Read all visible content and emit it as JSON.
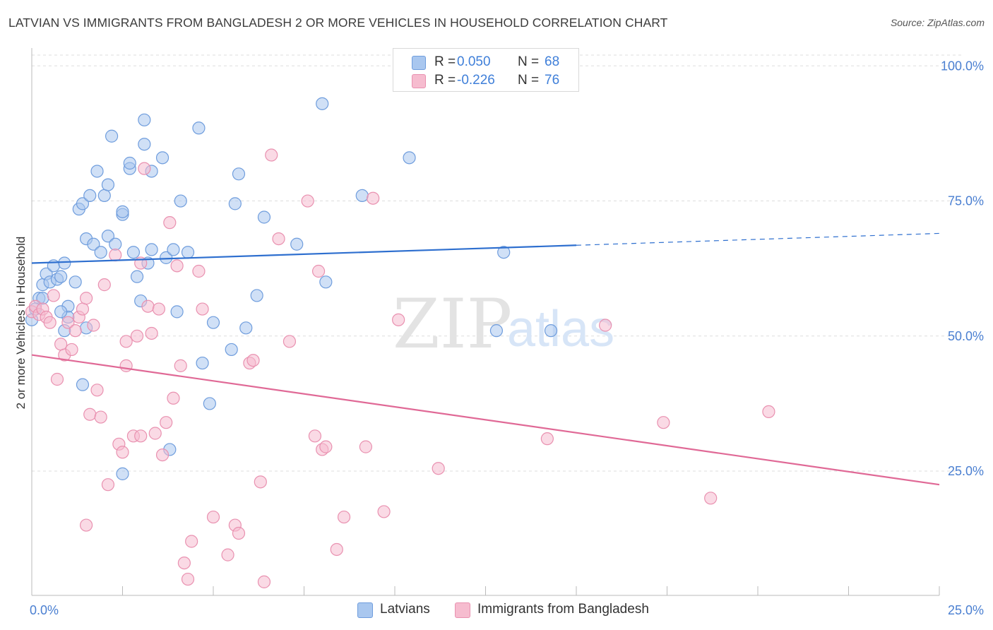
{
  "title": "LATVIAN VS IMMIGRANTS FROM BANGLADESH 2 OR MORE VEHICLES IN HOUSEHOLD CORRELATION CHART",
  "source": "Source: ZipAtlas.com",
  "watermark": {
    "zip": "ZIP",
    "atlas": "atlas"
  },
  "colors": {
    "blue_fill": "#a9c7ef",
    "blue_stroke": "#6f9ddd",
    "blue_line": "#2e6fcf",
    "pink_fill": "#f6bccf",
    "pink_stroke": "#e991b0",
    "pink_line": "#e06996",
    "axis_text": "#4a7fd1",
    "grid": "#dddddd"
  },
  "legend_top": {
    "rows": [
      {
        "series": "Latvians",
        "r_label": "R =",
        "r_value": "0.050",
        "n_label": "N =",
        "n_value": "68"
      },
      {
        "series": "Immigrants from Bangladesh",
        "r_label": "R =",
        "r_value": "-0.226",
        "n_label": "N =",
        "n_value": "76"
      }
    ]
  },
  "legend_bottom": [
    "Latvians",
    "Immigrants from Bangladesh"
  ],
  "chart_data": {
    "type": "scatter",
    "title": "LATVIAN VS IMMIGRANTS FROM BANGLADESH 2 OR MORE VEHICLES IN HOUSEHOLD CORRELATION CHART",
    "xlabel": "",
    "ylabel": "2 or more Vehicles in Household",
    "xlim": [
      0,
      25
    ],
    "ylim": [
      2,
      102
    ],
    "x_tick_labels": [
      "0.0%",
      "25.0%"
    ],
    "y_ticks": [
      25,
      50,
      75,
      100
    ],
    "y_tick_labels": [
      "25.0%",
      "50.0%",
      "75.0%",
      "100.0%"
    ],
    "grid": true,
    "series": [
      {
        "name": "Latvians",
        "color": "#6f9ddd",
        "trend": {
          "x_start": 0,
          "y_start": 63.5,
          "x_end": 15,
          "y_end": 66.8,
          "x_dash_end": 25,
          "y_dash_end": 69.0
        },
        "points": [
          {
            "x": 0.0,
            "y": 53.0
          },
          {
            "x": 0.2,
            "y": 57.0
          },
          {
            "x": 0.1,
            "y": 55.0
          },
          {
            "x": 0.3,
            "y": 59.5
          },
          {
            "x": 0.4,
            "y": 61.5
          },
          {
            "x": 0.5,
            "y": 60.0
          },
          {
            "x": 0.7,
            "y": 60.5
          },
          {
            "x": 0.8,
            "y": 61.0
          },
          {
            "x": 0.6,
            "y": 63.0
          },
          {
            "x": 0.9,
            "y": 63.5
          },
          {
            "x": 1.0,
            "y": 55.5
          },
          {
            "x": 1.0,
            "y": 53.5
          },
          {
            "x": 1.2,
            "y": 60.0
          },
          {
            "x": 1.3,
            "y": 73.5
          },
          {
            "x": 1.4,
            "y": 74.5
          },
          {
            "x": 1.5,
            "y": 68.0
          },
          {
            "x": 1.6,
            "y": 76.0
          },
          {
            "x": 1.7,
            "y": 67.0
          },
          {
            "x": 1.8,
            "y": 80.5
          },
          {
            "x": 1.9,
            "y": 65.5
          },
          {
            "x": 2.0,
            "y": 76.0
          },
          {
            "x": 2.1,
            "y": 68.5
          },
          {
            "x": 2.1,
            "y": 78.0
          },
          {
            "x": 2.2,
            "y": 87.0
          },
          {
            "x": 2.3,
            "y": 67.0
          },
          {
            "x": 2.5,
            "y": 72.5
          },
          {
            "x": 2.5,
            "y": 24.5
          },
          {
            "x": 2.5,
            "y": 73.0
          },
          {
            "x": 2.7,
            "y": 81.0
          },
          {
            "x": 2.7,
            "y": 82.0
          },
          {
            "x": 2.8,
            "y": 65.5
          },
          {
            "x": 2.9,
            "y": 61.0
          },
          {
            "x": 3.0,
            "y": 56.5
          },
          {
            "x": 3.1,
            "y": 85.5
          },
          {
            "x": 3.1,
            "y": 90.0
          },
          {
            "x": 3.2,
            "y": 63.5
          },
          {
            "x": 3.3,
            "y": 80.5
          },
          {
            "x": 3.3,
            "y": 66.0
          },
          {
            "x": 3.6,
            "y": 83.0
          },
          {
            "x": 3.7,
            "y": 64.5
          },
          {
            "x": 3.8,
            "y": 29.0
          },
          {
            "x": 3.9,
            "y": 66.0
          },
          {
            "x": 4.0,
            "y": 54.5
          },
          {
            "x": 4.1,
            "y": 75.0
          },
          {
            "x": 4.3,
            "y": 65.5
          },
          {
            "x": 4.6,
            "y": 88.5
          },
          {
            "x": 4.7,
            "y": 45.0
          },
          {
            "x": 4.9,
            "y": 37.5
          },
          {
            "x": 5.0,
            "y": 52.5
          },
          {
            "x": 5.5,
            "y": 47.5
          },
          {
            "x": 5.6,
            "y": 74.5
          },
          {
            "x": 5.7,
            "y": 80.0
          },
          {
            "x": 5.9,
            "y": 51.5
          },
          {
            "x": 6.2,
            "y": 57.5
          },
          {
            "x": 6.4,
            "y": 72.0
          },
          {
            "x": 7.3,
            "y": 67.0
          },
          {
            "x": 8.0,
            "y": 93.0
          },
          {
            "x": 8.1,
            "y": 60.0
          },
          {
            "x": 9.1,
            "y": 76.0
          },
          {
            "x": 10.4,
            "y": 83.0
          },
          {
            "x": 12.8,
            "y": 51.0
          },
          {
            "x": 13.0,
            "y": 65.5
          },
          {
            "x": 14.3,
            "y": 51.0
          },
          {
            "x": 0.3,
            "y": 57.0
          },
          {
            "x": 1.5,
            "y": 51.5
          },
          {
            "x": 1.4,
            "y": 41.0
          },
          {
            "x": 0.9,
            "y": 51.0
          },
          {
            "x": 0.8,
            "y": 54.5
          }
        ]
      },
      {
        "name": "Immigrants from Bangladesh",
        "color": "#e991b0",
        "trend": {
          "x_start": 0,
          "y_start": 46.5,
          "x_end": 25,
          "y_end": 22.5
        },
        "points": [
          {
            "x": 0.0,
            "y": 54.5
          },
          {
            "x": 0.1,
            "y": 55.5
          },
          {
            "x": 0.2,
            "y": 54.0
          },
          {
            "x": 0.3,
            "y": 55.0
          },
          {
            "x": 0.4,
            "y": 53.5
          },
          {
            "x": 0.5,
            "y": 52.5
          },
          {
            "x": 0.6,
            "y": 57.5
          },
          {
            "x": 0.7,
            "y": 42.0
          },
          {
            "x": 0.8,
            "y": 48.5
          },
          {
            "x": 0.9,
            "y": 46.5
          },
          {
            "x": 1.0,
            "y": 52.5
          },
          {
            "x": 1.1,
            "y": 47.5
          },
          {
            "x": 1.2,
            "y": 51.0
          },
          {
            "x": 1.3,
            "y": 53.5
          },
          {
            "x": 1.4,
            "y": 55.0
          },
          {
            "x": 1.5,
            "y": 57.0
          },
          {
            "x": 1.5,
            "y": 15.0
          },
          {
            "x": 1.6,
            "y": 35.5
          },
          {
            "x": 1.7,
            "y": 52.0
          },
          {
            "x": 1.8,
            "y": 40.0
          },
          {
            "x": 1.9,
            "y": 35.0
          },
          {
            "x": 2.0,
            "y": 59.5
          },
          {
            "x": 2.1,
            "y": 22.5
          },
          {
            "x": 2.3,
            "y": 65.0
          },
          {
            "x": 2.4,
            "y": 30.0
          },
          {
            "x": 2.5,
            "y": 28.5
          },
          {
            "x": 2.6,
            "y": 44.5
          },
          {
            "x": 2.6,
            "y": 49.0
          },
          {
            "x": 2.8,
            "y": 31.5
          },
          {
            "x": 2.9,
            "y": 50.0
          },
          {
            "x": 3.0,
            "y": 63.5
          },
          {
            "x": 3.0,
            "y": 31.5
          },
          {
            "x": 3.1,
            "y": 81.0
          },
          {
            "x": 3.2,
            "y": 55.5
          },
          {
            "x": 3.3,
            "y": 50.5
          },
          {
            "x": 3.4,
            "y": 32.0
          },
          {
            "x": 3.5,
            "y": 55.0
          },
          {
            "x": 3.6,
            "y": 28.0
          },
          {
            "x": 3.7,
            "y": 34.0
          },
          {
            "x": 3.8,
            "y": 71.0
          },
          {
            "x": 3.9,
            "y": 38.5
          },
          {
            "x": 4.0,
            "y": 63.0
          },
          {
            "x": 4.1,
            "y": 44.5
          },
          {
            "x": 4.2,
            "y": 8.0
          },
          {
            "x": 4.3,
            "y": 5.0
          },
          {
            "x": 4.4,
            "y": 12.0
          },
          {
            "x": 4.6,
            "y": 62.0
          },
          {
            "x": 4.7,
            "y": 55.0
          },
          {
            "x": 5.0,
            "y": 16.5
          },
          {
            "x": 5.4,
            "y": 9.5
          },
          {
            "x": 5.6,
            "y": 15.0
          },
          {
            "x": 5.7,
            "y": 13.5
          },
          {
            "x": 6.0,
            "y": 45.0
          },
          {
            "x": 6.1,
            "y": 45.5
          },
          {
            "x": 6.3,
            "y": 23.0
          },
          {
            "x": 6.4,
            "y": 4.5
          },
          {
            "x": 6.6,
            "y": 83.5
          },
          {
            "x": 6.8,
            "y": 68.0
          },
          {
            "x": 7.1,
            "y": 49.0
          },
          {
            "x": 7.6,
            "y": 75.0
          },
          {
            "x": 7.8,
            "y": 31.5
          },
          {
            "x": 7.9,
            "y": 62.0
          },
          {
            "x": 8.0,
            "y": 29.0
          },
          {
            "x": 8.1,
            "y": 29.5
          },
          {
            "x": 8.4,
            "y": 10.5
          },
          {
            "x": 8.6,
            "y": 16.5
          },
          {
            "x": 9.2,
            "y": 29.5
          },
          {
            "x": 9.4,
            "y": 75.5
          },
          {
            "x": 9.7,
            "y": 17.5
          },
          {
            "x": 10.1,
            "y": 53.0
          },
          {
            "x": 11.2,
            "y": 25.5
          },
          {
            "x": 14.2,
            "y": 31.0
          },
          {
            "x": 15.8,
            "y": 52.0
          },
          {
            "x": 17.4,
            "y": 34.0
          },
          {
            "x": 18.7,
            "y": 20.0
          },
          {
            "x": 20.3,
            "y": 36.0
          }
        ]
      }
    ]
  }
}
